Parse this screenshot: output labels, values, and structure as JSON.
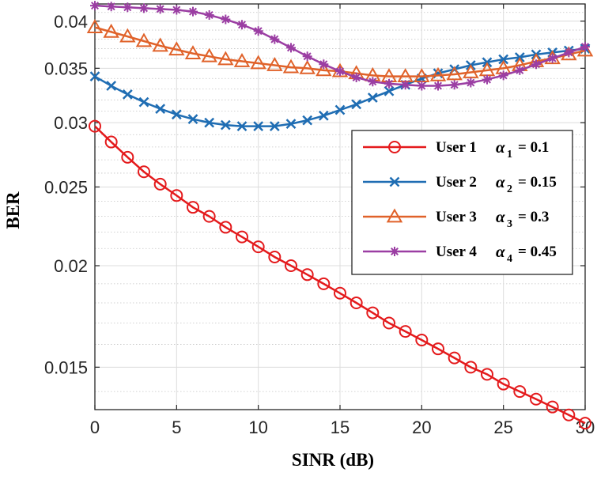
{
  "chart_data": {
    "type": "line",
    "title": "",
    "xlabel": "SINR (dB)",
    "ylabel": "BER",
    "xlim": [
      0,
      30
    ],
    "ylim": [
      0.0133,
      0.042
    ],
    "yscale": "log",
    "grid": true,
    "minor_grid": true,
    "legend_position": "right-middle",
    "x": [
      0,
      1,
      2,
      3,
      4,
      5,
      6,
      7,
      8,
      9,
      10,
      11,
      12,
      13,
      14,
      15,
      16,
      17,
      18,
      19,
      20,
      21,
      22,
      23,
      24,
      25,
      26,
      27,
      28,
      29,
      30
    ],
    "x_ticks": [
      0,
      5,
      10,
      15,
      20,
      25,
      30
    ],
    "x_tick_labels": [
      "0",
      "5",
      "10",
      "15",
      "20",
      "25",
      "30"
    ],
    "y_ticks": [
      0.015,
      0.02,
      0.025,
      0.03,
      0.035,
      0.04
    ],
    "y_tick_labels": [
      "0.015",
      "0.02",
      "0.025",
      "0.03",
      "0.035",
      "0.04"
    ],
    "series": [
      {
        "name": "User 1",
        "alpha_label": "α",
        "alpha_index": "1",
        "alpha_value": "= 0.1",
        "color": "#e41a1c",
        "marker": "circle",
        "values": [
          0.0297,
          0.0284,
          0.0272,
          0.0261,
          0.0252,
          0.0244,
          0.0236,
          0.023,
          0.0223,
          0.0217,
          0.0211,
          0.0205,
          0.02,
          0.0195,
          0.019,
          0.0185,
          0.018,
          0.0175,
          0.017,
          0.0166,
          0.0162,
          0.0158,
          0.0154,
          0.015,
          0.0147,
          0.0143,
          0.014,
          0.0137,
          0.0134,
          0.0131,
          0.0128
        ]
      },
      {
        "name": "User 2",
        "alpha_label": "α",
        "alpha_index": "2",
        "alpha_value": "= 0.15",
        "color": "#1f6db3",
        "marker": "x",
        "values": [
          0.0342,
          0.0333,
          0.0325,
          0.0318,
          0.0312,
          0.0307,
          0.0303,
          0.03,
          0.0298,
          0.0297,
          0.0297,
          0.0297,
          0.0299,
          0.0302,
          0.0306,
          0.0311,
          0.0316,
          0.0322,
          0.0328,
          0.0334,
          0.034,
          0.0345,
          0.0349,
          0.0353,
          0.0356,
          0.0359,
          0.0361,
          0.0364,
          0.0366,
          0.0368,
          0.037
        ]
      },
      {
        "name": "User 3",
        "alpha_label": "α",
        "alpha_index": "3",
        "alpha_value": "= 0.3",
        "color": "#e0622a",
        "marker": "triangle",
        "values": [
          0.0393,
          0.0388,
          0.0383,
          0.0378,
          0.0373,
          0.0369,
          0.0365,
          0.0362,
          0.0359,
          0.0357,
          0.0355,
          0.0353,
          0.0351,
          0.035,
          0.0348,
          0.0347,
          0.0345,
          0.0343,
          0.0342,
          0.0342,
          0.0342,
          0.0343,
          0.0344,
          0.0346,
          0.0348,
          0.035,
          0.0353,
          0.0357,
          0.036,
          0.0364,
          0.0368
        ]
      },
      {
        "name": "User 4",
        "alpha_label": "α",
        "alpha_index": "4",
        "alpha_value": "= 0.45",
        "color": "#9b3ea3",
        "marker": "asterisk",
        "values": [
          0.0418,
          0.0417,
          0.0416,
          0.0415,
          0.0414,
          0.0413,
          0.0411,
          0.0407,
          0.0402,
          0.0396,
          0.0389,
          0.038,
          0.0371,
          0.0362,
          0.0354,
          0.0347,
          0.0341,
          0.0337,
          0.0335,
          0.0334,
          0.0333,
          0.0333,
          0.0334,
          0.0336,
          0.0339,
          0.0343,
          0.0348,
          0.0354,
          0.036,
          0.0366,
          0.0372
        ]
      }
    ]
  }
}
